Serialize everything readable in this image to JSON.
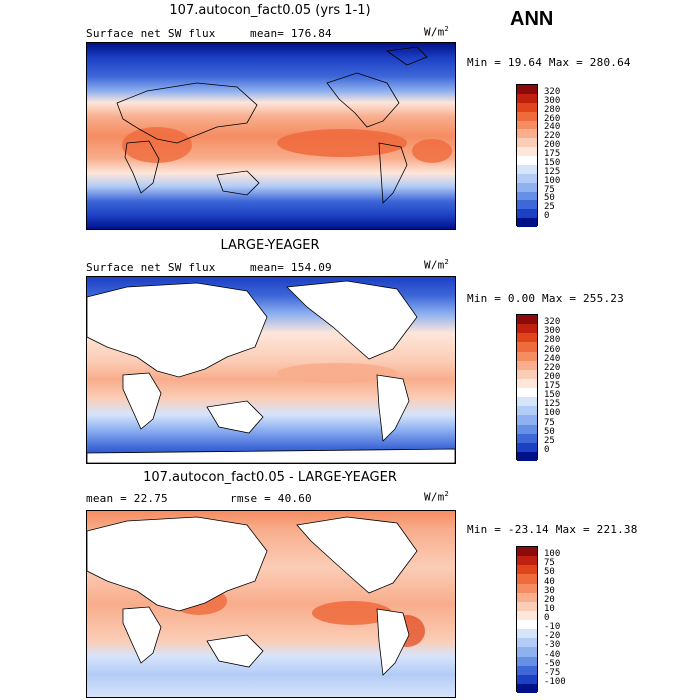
{
  "season": "ANN",
  "panels": [
    {
      "title": "107.autocon_fact0.05 (yrs 1-1)",
      "left_label": "Surface net SW flux",
      "mid_label": "mean= 176.84",
      "units": "W/m",
      "units_sup": "2",
      "minmax": "Min =  19.64 Max = 280.64",
      "colorbar": {
        "labels": [
          "320",
          "300",
          "280",
          "260",
          "240",
          "220",
          "200",
          "175",
          "150",
          "125",
          "100",
          "75",
          "50",
          "25",
          "0"
        ],
        "colors": [
          "#8b0a0a",
          "#c1200e",
          "#e0441a",
          "#ef6a3c",
          "#f58c62",
          "#f8ad8c",
          "#fbcdb6",
          "#fde6da",
          "#ffffff",
          "#d6e4fb",
          "#b3ccf6",
          "#8fb1f0",
          "#668fe6",
          "#3e67d8",
          "#1c3fc4",
          "#001188"
        ]
      }
    },
    {
      "title": "LARGE-YEAGER",
      "left_label": "Surface net SW flux",
      "mid_label": "mean= 154.09",
      "units": "W/m",
      "units_sup": "2",
      "minmax": "Min =   0.00 Max = 255.23",
      "colorbar": {
        "labels": [
          "320",
          "300",
          "280",
          "260",
          "240",
          "220",
          "200",
          "175",
          "150",
          "125",
          "100",
          "75",
          "50",
          "25",
          "0"
        ],
        "colors": [
          "#8b0a0a",
          "#c1200e",
          "#e0441a",
          "#ef6a3c",
          "#f58c62",
          "#f8ad8c",
          "#fbcdb6",
          "#fde6da",
          "#ffffff",
          "#d6e4fb",
          "#b3ccf6",
          "#8fb1f0",
          "#668fe6",
          "#3e67d8",
          "#1c3fc4",
          "#001188"
        ]
      }
    },
    {
      "title": "107.autocon_fact0.05 - LARGE-YEAGER",
      "left_label": "mean =  22.75",
      "mid_label": "rmse =  40.60",
      "units": "W/m",
      "units_sup": "2",
      "minmax": "Min = -23.14 Max = 221.38",
      "colorbar": {
        "labels": [
          "100",
          "75",
          "50",
          "40",
          "30",
          "20",
          "10",
          "0",
          "-10",
          "-20",
          "-30",
          "-40",
          "-50",
          "-75",
          "-100"
        ],
        "colors": [
          "#8b0a0a",
          "#c1200e",
          "#e0441a",
          "#ef6a3c",
          "#f58c62",
          "#f8ad8c",
          "#fbcdb6",
          "#fde6da",
          "#ffffff",
          "#d6e4fb",
          "#b3ccf6",
          "#8fb1f0",
          "#668fe6",
          "#3e67d8",
          "#1c3fc4",
          "#001188"
        ]
      }
    }
  ]
}
